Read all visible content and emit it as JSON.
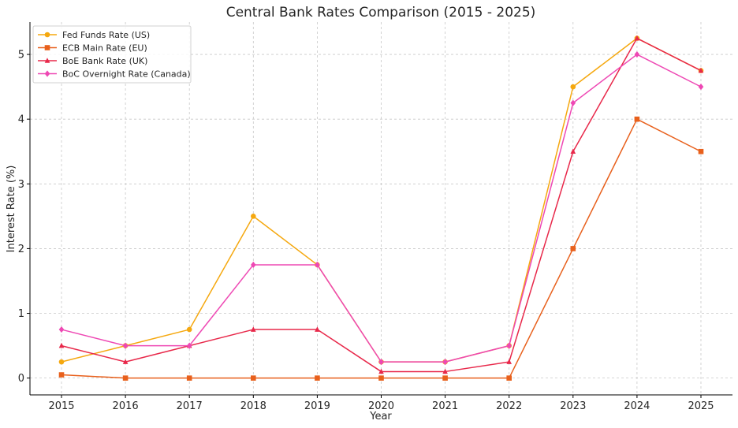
{
  "chart_data": {
    "type": "line",
    "title": "Central Bank Rates Comparison (2015 - 2025)",
    "xlabel": "Year",
    "ylabel": "Interest Rate (%)",
    "x": [
      2015,
      2016,
      2017,
      2018,
      2019,
      2020,
      2021,
      2022,
      2023,
      2024,
      2025
    ],
    "xlim": [
      2015,
      2025
    ],
    "ylim": [
      -0.26,
      5.5
    ],
    "yticks": [
      0,
      1,
      2,
      3,
      4,
      5
    ],
    "grid": true,
    "legend_position": "top-left",
    "series": [
      {
        "name": "Fed Funds Rate (US)",
        "color": "#f5a80f",
        "marker": "circle",
        "values": [
          0.25,
          0.5,
          0.75,
          2.5,
          1.75,
          0.25,
          0.25,
          0.5,
          4.5,
          5.25,
          4.75
        ]
      },
      {
        "name": "ECB Main Rate (EU)",
        "color": "#e8601c",
        "marker": "square",
        "values": [
          0.05,
          0.0,
          0.0,
          0.0,
          0.0,
          0.0,
          0.0,
          0.0,
          2.0,
          4.0,
          3.5
        ]
      },
      {
        "name": "BoE Bank Rate (UK)",
        "color": "#e8284a",
        "marker": "triangle",
        "values": [
          0.5,
          0.25,
          0.5,
          0.75,
          0.75,
          0.1,
          0.1,
          0.25,
          3.5,
          5.25,
          4.75
        ]
      },
      {
        "name": "BoC Overnight Rate (Canada)",
        "color": "#ee48b4",
        "marker": "diamond",
        "values": [
          0.75,
          0.5,
          0.5,
          1.75,
          1.75,
          0.25,
          0.25,
          0.5,
          4.25,
          5.0,
          4.5
        ]
      }
    ]
  }
}
